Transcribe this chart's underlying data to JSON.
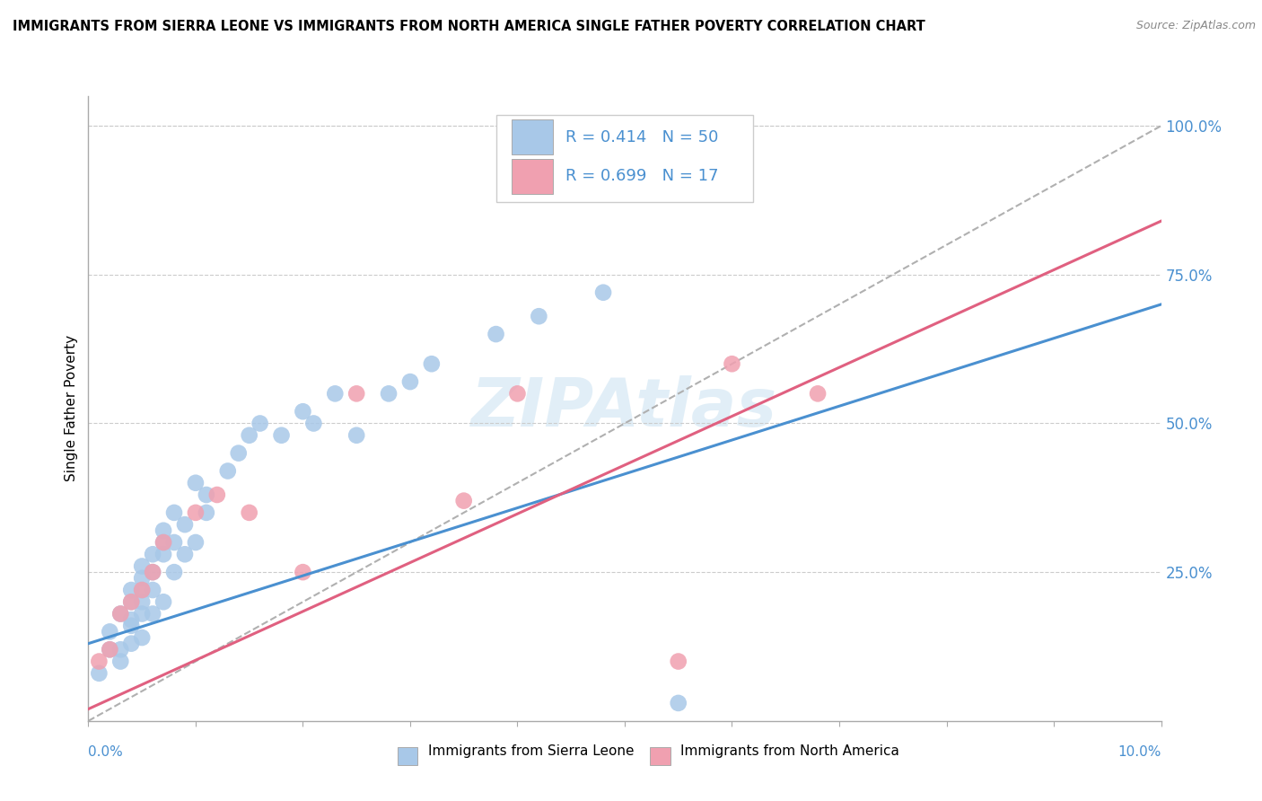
{
  "title": "IMMIGRANTS FROM SIERRA LEONE VS IMMIGRANTS FROM NORTH AMERICA SINGLE FATHER POVERTY CORRELATION CHART",
  "source": "Source: ZipAtlas.com",
  "ylabel": "Single Father Poverty",
  "blue_color": "#a8c8e8",
  "pink_color": "#f0a0b0",
  "blue_line_color": "#4a90d0",
  "pink_line_color": "#e06080",
  "ref_line_color": "#b0b0b0",
  "text_color_blue": "#4a90d0",
  "xmin": 0.0,
  "xmax": 0.1,
  "ymin": 0.0,
  "ymax": 1.05,
  "blue_scatter_x": [
    0.001,
    0.002,
    0.002,
    0.003,
    0.003,
    0.003,
    0.004,
    0.004,
    0.004,
    0.004,
    0.004,
    0.005,
    0.005,
    0.005,
    0.005,
    0.005,
    0.005,
    0.006,
    0.006,
    0.006,
    0.006,
    0.007,
    0.007,
    0.007,
    0.007,
    0.008,
    0.008,
    0.008,
    0.009,
    0.009,
    0.01,
    0.01,
    0.011,
    0.011,
    0.013,
    0.014,
    0.015,
    0.016,
    0.018,
    0.02,
    0.021,
    0.023,
    0.025,
    0.028,
    0.03,
    0.032,
    0.038,
    0.042,
    0.048,
    0.055
  ],
  "blue_scatter_y": [
    0.08,
    0.12,
    0.15,
    0.1,
    0.12,
    0.18,
    0.13,
    0.16,
    0.17,
    0.2,
    0.22,
    0.14,
    0.18,
    0.2,
    0.22,
    0.24,
    0.26,
    0.18,
    0.22,
    0.25,
    0.28,
    0.2,
    0.28,
    0.3,
    0.32,
    0.25,
    0.3,
    0.35,
    0.28,
    0.33,
    0.3,
    0.4,
    0.35,
    0.38,
    0.42,
    0.45,
    0.48,
    0.5,
    0.48,
    0.52,
    0.5,
    0.55,
    0.48,
    0.55,
    0.57,
    0.6,
    0.65,
    0.68,
    0.72,
    0.03
  ],
  "pink_scatter_x": [
    0.001,
    0.002,
    0.003,
    0.004,
    0.005,
    0.006,
    0.007,
    0.01,
    0.012,
    0.015,
    0.02,
    0.025,
    0.035,
    0.04,
    0.055,
    0.06,
    0.068
  ],
  "pink_scatter_y": [
    0.1,
    0.12,
    0.18,
    0.2,
    0.22,
    0.25,
    0.3,
    0.35,
    0.38,
    0.35,
    0.25,
    0.55,
    0.37,
    0.55,
    0.1,
    0.6,
    0.55
  ],
  "blue_fit_x": [
    0.0,
    0.1
  ],
  "blue_fit_y": [
    0.13,
    0.7
  ],
  "pink_fit_x": [
    0.0,
    0.1
  ],
  "pink_fit_y": [
    0.02,
    0.84
  ],
  "ref_fit_x": [
    0.0,
    0.1
  ],
  "ref_fit_y": [
    0.0,
    1.0
  ],
  "ytick_vals": [
    0.0,
    0.25,
    0.5,
    0.75,
    1.0
  ],
  "ytick_labels": [
    "",
    "25.0%",
    "50.0%",
    "75.0%",
    "100.0%"
  ],
  "legend_r1": "R = 0.414",
  "legend_n1": "N = 50",
  "legend_r2": "R = 0.699",
  "legend_n2": "N = 17",
  "legend_label1": "Immigrants from Sierra Leone",
  "legend_label2": "Immigrants from North America",
  "watermark": "ZIPAtlas"
}
